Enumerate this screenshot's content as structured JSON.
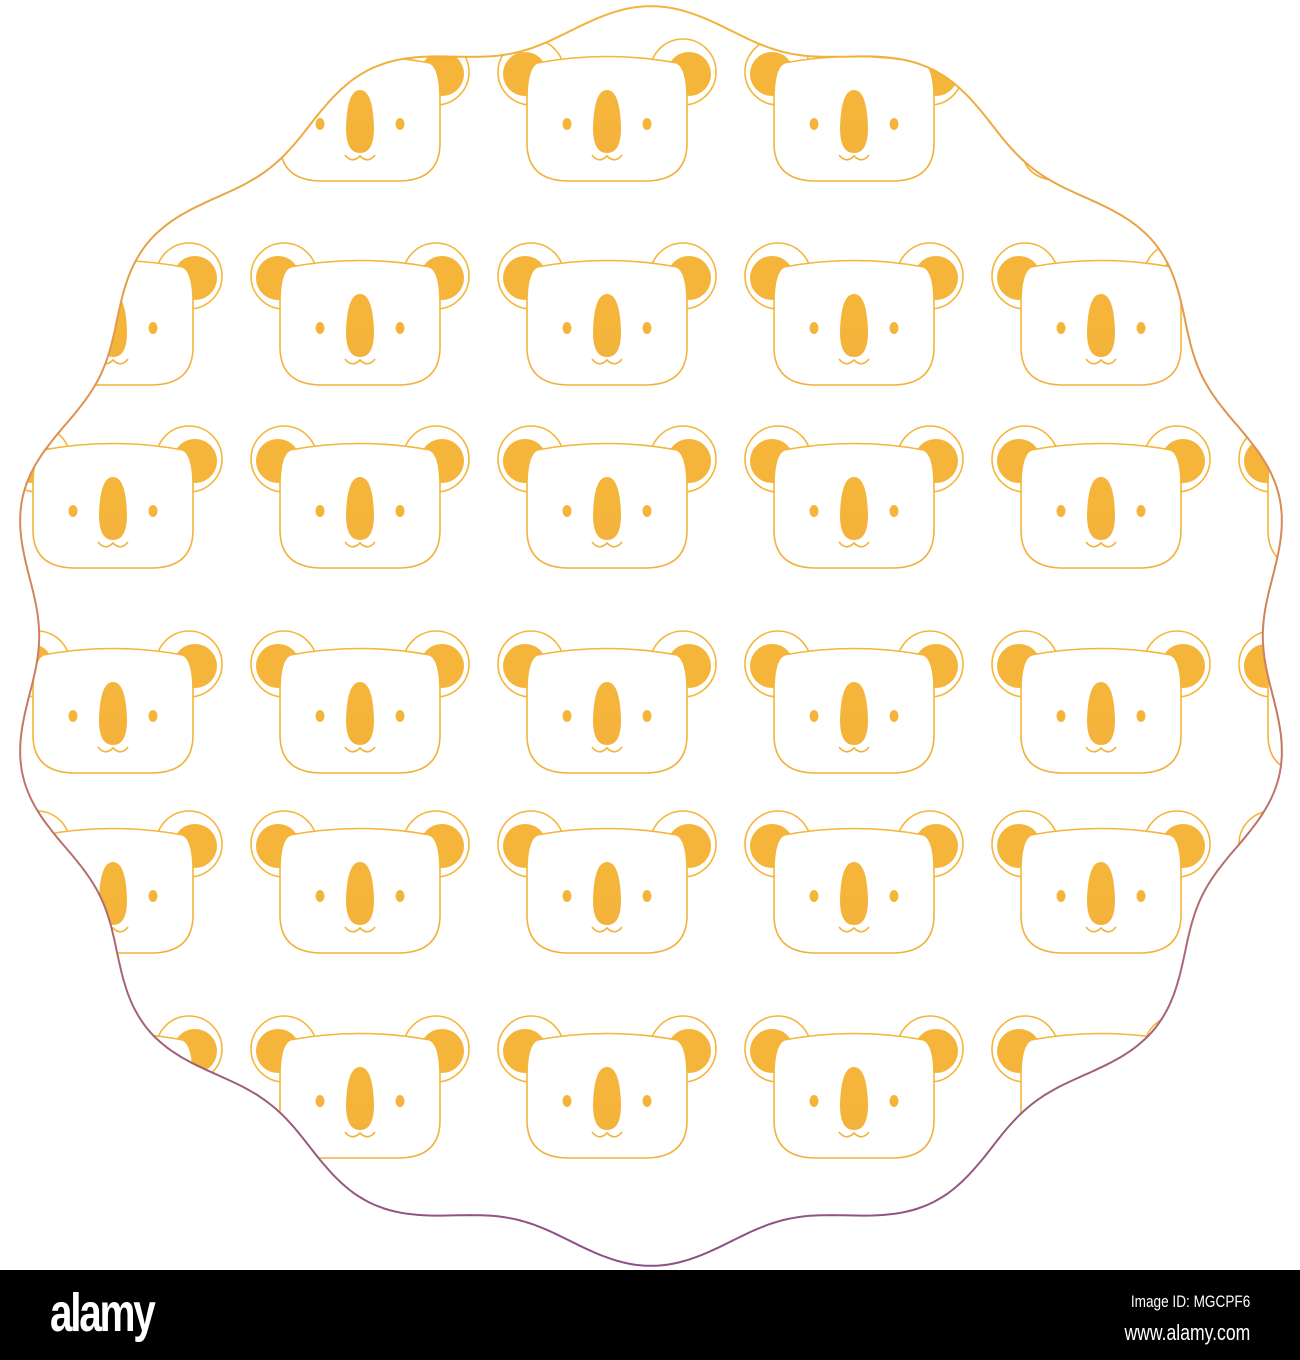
{
  "artwork": {
    "subject": "koala-face-pattern-in-wavy-circle-frame",
    "gradient_top": "#f5b53a",
    "gradient_mid": "#d5855a",
    "gradient_bottom": "#8b4f88"
  },
  "watermark": {
    "logo": "alamy",
    "image_id": "Image ID: MGCPF6",
    "site": "www.alamy.com"
  }
}
